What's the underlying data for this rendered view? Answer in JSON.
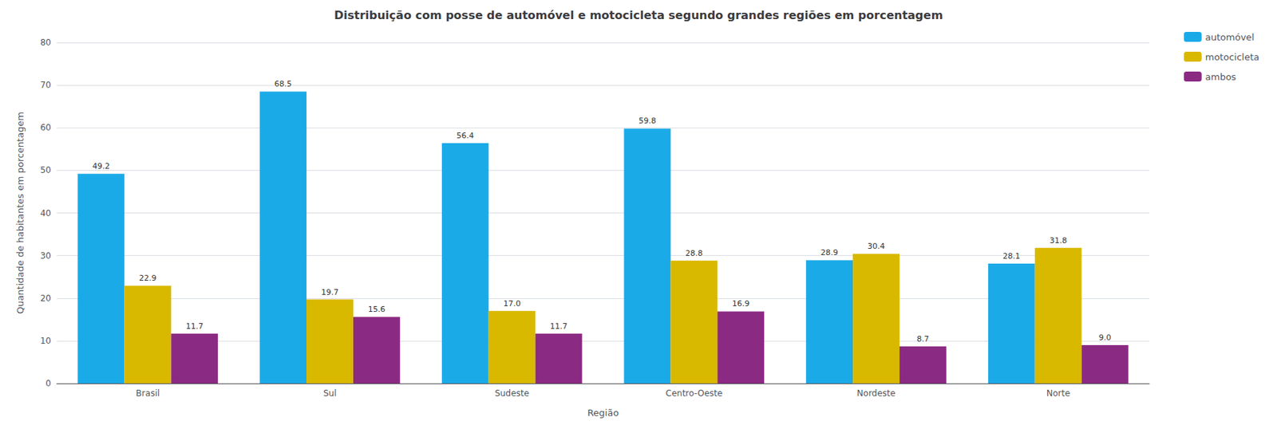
{
  "chart_data": {
    "type": "bar",
    "title": "Distribuição com posse de automóvel e motocicleta segundo grandes regiões em porcentagem",
    "xlabel": "Região",
    "ylabel": "Quantidade de habitantes em porcentagem",
    "categories": [
      "Brasil",
      "Sul",
      "Sudeste",
      "Centro-Oeste",
      "Nordeste",
      "Norte"
    ],
    "series": [
      {
        "name": "automóvel",
        "color": "#1baae8",
        "values": [
          49.2,
          68.5,
          56.4,
          59.8,
          28.9,
          28.1
        ],
        "value_labels": [
          "49.2",
          "68.5",
          "56.4",
          "59.8",
          "28.9",
          "28.1"
        ]
      },
      {
        "name": "motocicleta",
        "color": "#d9b800",
        "values": [
          22.9,
          19.7,
          17.0,
          28.8,
          30.4,
          31.8
        ],
        "value_labels": [
          "22.9",
          "19.7",
          "17.0",
          "28.8",
          "30.4",
          "31.8"
        ]
      },
      {
        "name": "ambos",
        "color": "#8b2a82",
        "values": [
          11.7,
          15.6,
          11.7,
          16.9,
          8.7,
          9.0
        ],
        "value_labels": [
          "11.7",
          "15.6",
          "11.7",
          "16.9",
          "8.7",
          "9.0"
        ]
      }
    ],
    "ylim": [
      0,
      80
    ],
    "yticks": [
      0,
      10,
      20,
      30,
      40,
      50,
      60,
      70,
      80
    ],
    "grid": true,
    "legend": "upper right",
    "data_labels": true
  }
}
